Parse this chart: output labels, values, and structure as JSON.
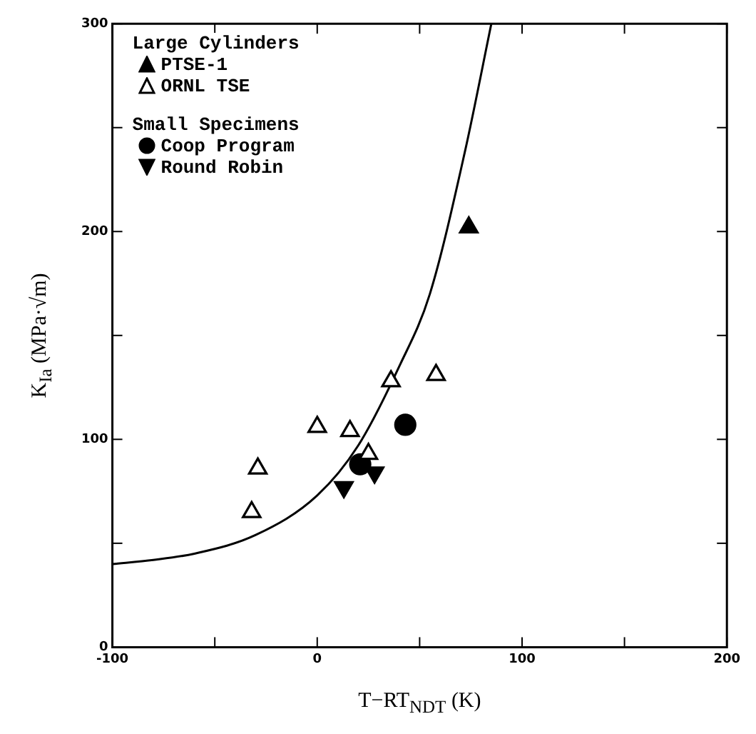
{
  "chart_data": {
    "type": "scatter",
    "xlabel": "T−RT$_{NDT}$ (K)",
    "ylabel": "K$_{Ia}$ (MPa·√m)",
    "xlim": [
      -100,
      200
    ],
    "xticks": [
      -100,
      {
        "value": -50,
        "label": null
      },
      0,
      {
        "value": 50,
        "label": null
      },
      100,
      {
        "value": 150,
        "label": null
      },
      200
    ],
    "ylim": [
      0,
      300
    ],
    "yticks": [
      0,
      {
        "value": 50,
        "label": null
      },
      100,
      {
        "value": 150,
        "label": null
      },
      200,
      {
        "value": 250,
        "label": null
      },
      300
    ],
    "grid": false,
    "legend": "top left",
    "annotations": [
      "Large Cylinders",
      "Small Specimens"
    ],
    "series": [
      {
        "name": "PTSE-1",
        "color": "#000000",
        "marker": "triangle",
        "x": [
          74
        ],
        "values": [
          202
        ]
      },
      {
        "name": "ORNL TSE",
        "color": "#000000",
        "marker": "triangle_open",
        "x": [
          -32,
          -29,
          0,
          16,
          25,
          36,
          58
        ],
        "values": [
          65,
          86,
          106,
          104,
          93,
          128,
          131
        ]
      },
      {
        "name": "Coop Program",
        "color": "#000000",
        "marker": "circle",
        "x": [
          43,
          21
        ],
        "values": [
          107,
          88
        ]
      },
      {
        "name": "Round Robin",
        "color": "#000000",
        "marker": "triangle_down",
        "x": [
          13,
          28
        ],
        "values": [
          77,
          84
        ]
      },
      {
        "type": "line",
        "color": "#000000",
        "marker": "none",
        "x": [
          -100,
          -80,
          -60,
          -30,
          0,
          20,
          40,
          55,
          72,
          85
        ],
        "values": [
          40,
          42,
          45,
          54,
          73,
          97,
          135,
          170,
          238,
          300
        ]
      }
    ]
  }
}
